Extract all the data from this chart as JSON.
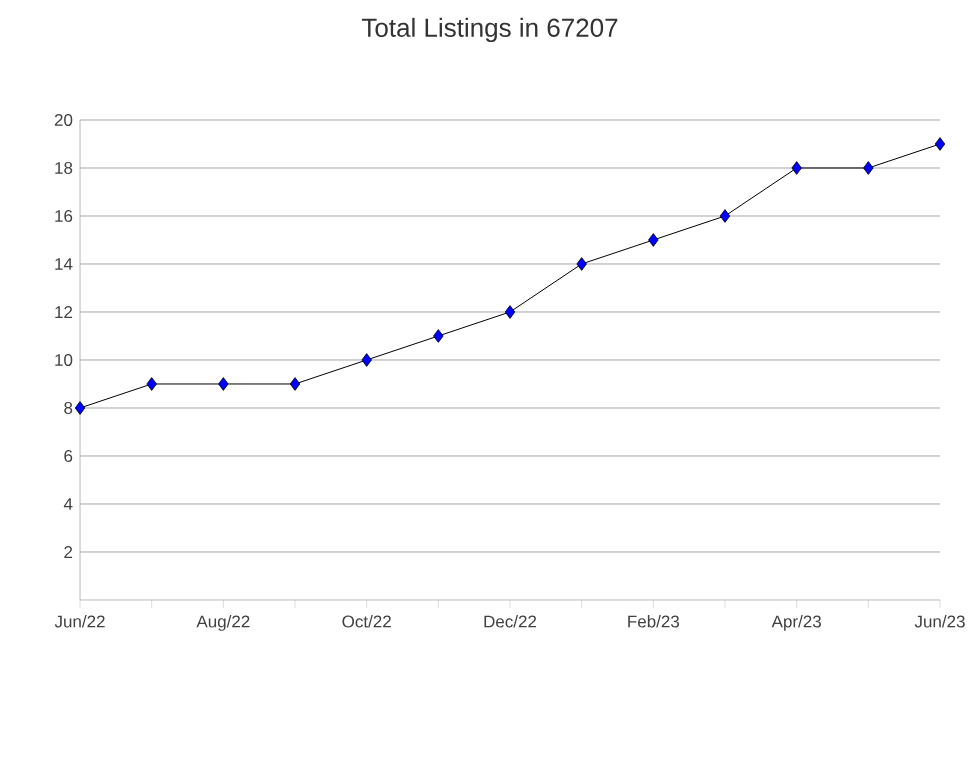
{
  "chart_data": {
    "type": "line",
    "title": "Total Listings in 67207",
    "categories": [
      "Jun/22",
      null,
      "Aug/22",
      null,
      "Oct/22",
      null,
      "Dec/22",
      null,
      "Feb/23",
      null,
      "Apr/23",
      null,
      "Jun/23"
    ],
    "values": [
      8,
      9,
      9,
      9,
      10,
      11,
      12,
      14,
      15,
      16,
      18,
      18,
      19
    ],
    "color": "#0000ff",
    "marker": "diamond",
    "grid": "y",
    "ylim": [
      0,
      20
    ],
    "yticks": [
      2,
      4,
      6,
      8,
      10,
      12,
      14,
      16,
      18,
      20
    ]
  }
}
